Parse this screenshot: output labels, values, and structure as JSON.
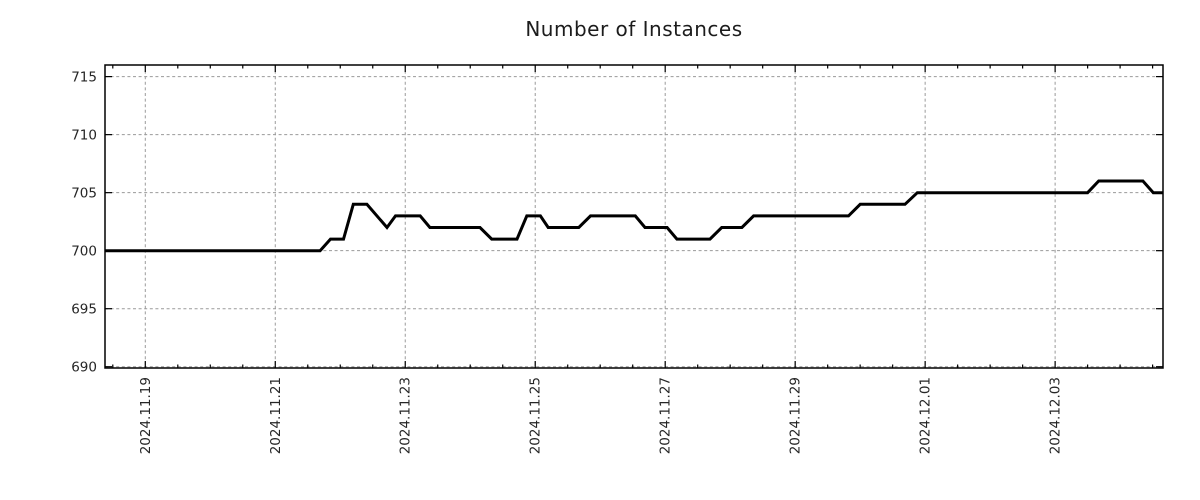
{
  "chart_data": {
    "type": "line",
    "title": "Number of Instances",
    "legend": "none",
    "x_axis": {
      "kind": "date",
      "tick_labels": [
        "2024.11.19",
        "2024.11.21",
        "2024.11.23",
        "2024.11.25",
        "2024.11.27",
        "2024.11.29",
        "2024.12.01",
        "2024.12.03"
      ],
      "tick_positions_days": [
        0,
        2,
        4,
        6,
        8,
        10,
        12,
        14
      ],
      "minor_tick_step_days": 0.5,
      "range_days": [
        -0.62,
        15.66
      ],
      "grid": "major"
    },
    "y_axis": {
      "tick_labels": [
        "690",
        "695",
        "700",
        "705",
        "710",
        "715"
      ],
      "tick_values": [
        690,
        695,
        700,
        705,
        710,
        715
      ],
      "range": [
        689.89,
        716.0
      ],
      "grid": "major"
    },
    "series": [
      {
        "name": "Number of Instances",
        "color": "#000000",
        "line_width": 3,
        "points_days_value": [
          [
            -0.62,
            700
          ],
          [
            2.69,
            700
          ],
          [
            2.85,
            701
          ],
          [
            3.05,
            701
          ],
          [
            3.2,
            704
          ],
          [
            3.41,
            704
          ],
          [
            3.72,
            702
          ],
          [
            3.85,
            703
          ],
          [
            4.23,
            703
          ],
          [
            4.38,
            702
          ],
          [
            5.15,
            702
          ],
          [
            5.33,
            701
          ],
          [
            5.72,
            701
          ],
          [
            5.87,
            703
          ],
          [
            6.08,
            703
          ],
          [
            6.2,
            702
          ],
          [
            6.67,
            702
          ],
          [
            6.85,
            703
          ],
          [
            7.54,
            703
          ],
          [
            7.69,
            702
          ],
          [
            8.03,
            702
          ],
          [
            8.18,
            701
          ],
          [
            8.69,
            701
          ],
          [
            8.87,
            702
          ],
          [
            9.18,
            702
          ],
          [
            9.36,
            703
          ],
          [
            10.82,
            703
          ],
          [
            11.0,
            704
          ],
          [
            11.69,
            704
          ],
          [
            11.88,
            705
          ],
          [
            14.5,
            705
          ],
          [
            14.67,
            706
          ],
          [
            15.35,
            706
          ],
          [
            15.51,
            705
          ],
          [
            15.66,
            705
          ]
        ]
      }
    ],
    "colors": {
      "grid": "#9a9a9a",
      "border": "#000000",
      "text": "#262626",
      "line": "#000000",
      "background": "#ffffff"
    }
  }
}
